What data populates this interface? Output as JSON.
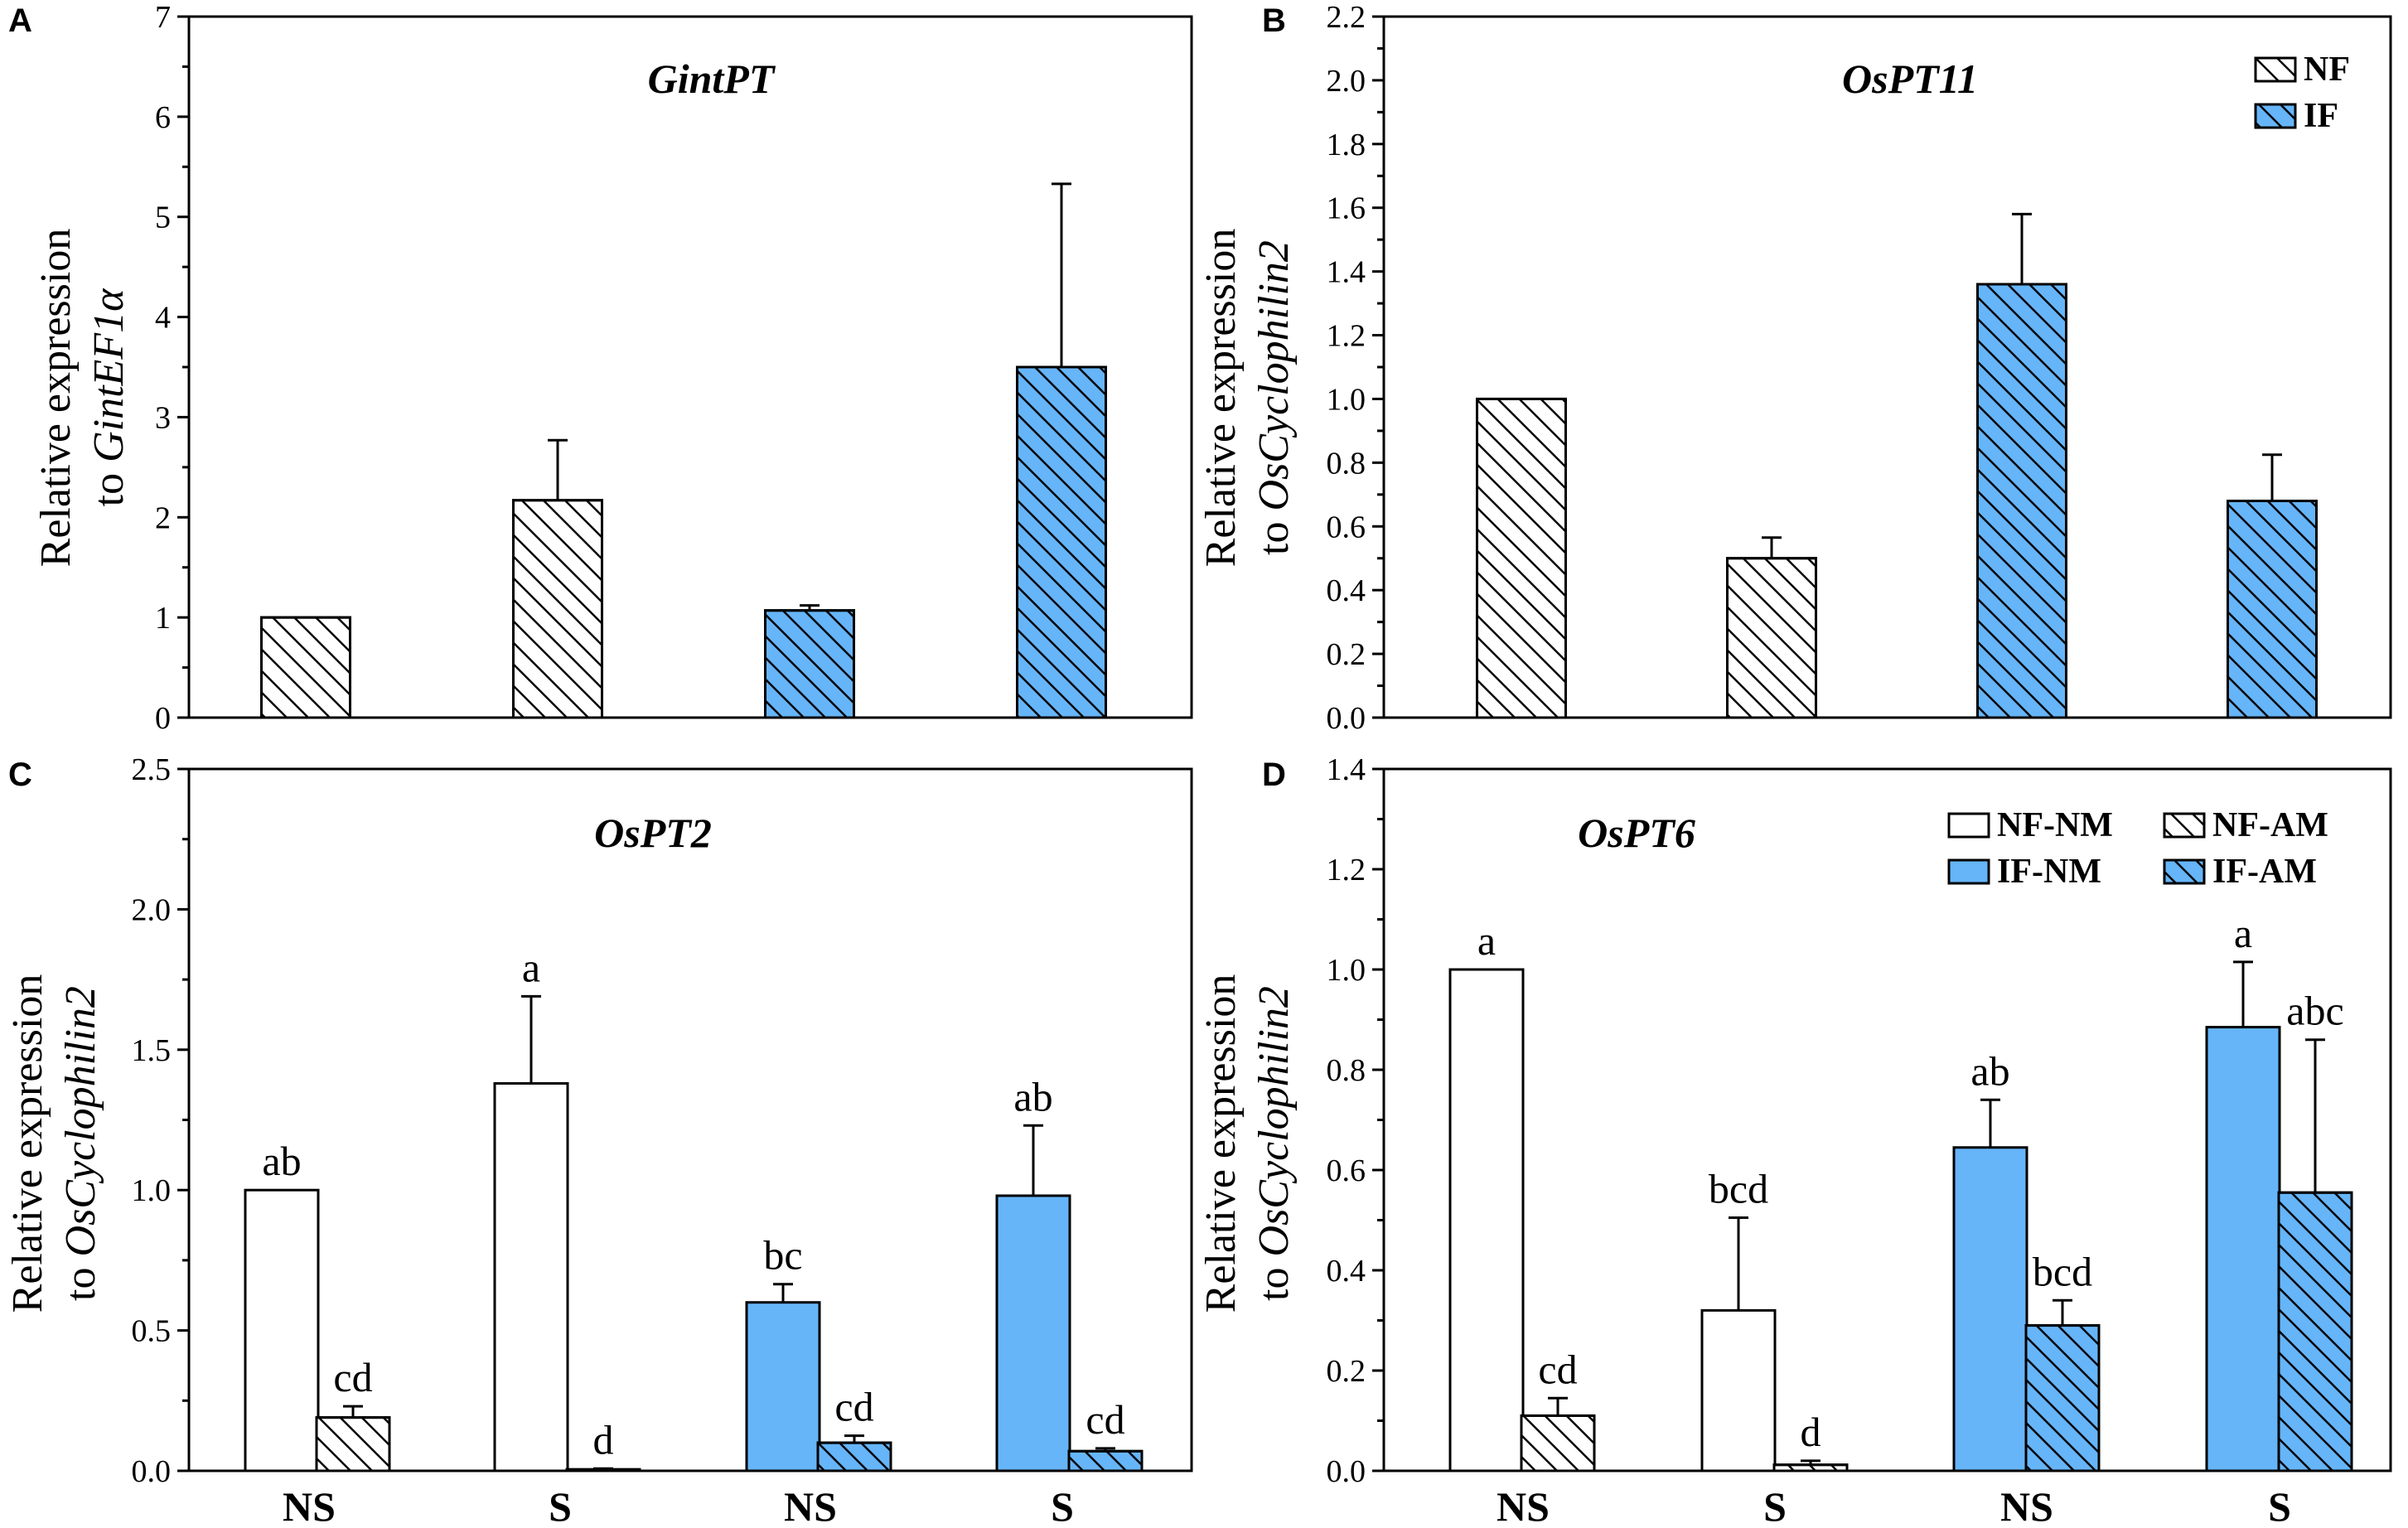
{
  "colors": {
    "blue": "#66b5f9",
    "white": "#ffffff",
    "black": "#000000"
  },
  "legends": {
    "B": [
      {
        "label": "NF",
        "fill": "white",
        "hatch": true
      },
      {
        "label": "IF",
        "fill": "blue",
        "hatch": true
      }
    ],
    "D": [
      {
        "label": "NF-NM",
        "fill": "white",
        "hatch": false
      },
      {
        "label": "NF-AM",
        "fill": "white",
        "hatch": true
      },
      {
        "label": "IF-NM",
        "fill": "blue",
        "hatch": false
      },
      {
        "label": "IF-AM",
        "fill": "blue",
        "hatch": true
      }
    ]
  },
  "chart_data": [
    {
      "panel": "A",
      "type": "bar",
      "title": "GintPT",
      "ylabel_plain": "Relative expression",
      "ylabel_prefix": "to ",
      "ylabel_italic": "GintEF1α",
      "ylim": [
        0,
        7
      ],
      "yticks": [
        {
          "v": 0,
          "label": "0"
        },
        {
          "v": 1,
          "label": "1"
        },
        {
          "v": 2,
          "label": "2"
        },
        {
          "v": 3,
          "label": "3"
        },
        {
          "v": 4,
          "label": "4"
        },
        {
          "v": 5,
          "label": "5"
        },
        {
          "v": 6,
          "label": "6"
        },
        {
          "v": 7,
          "label": "7"
        }
      ],
      "categories": [],
      "bars": [
        {
          "value": 1.0,
          "error": 0,
          "fill": "white",
          "hatch": true,
          "sig": ""
        },
        {
          "value": 2.17,
          "error": 0.6,
          "fill": "white",
          "hatch": true,
          "sig": ""
        },
        {
          "value": 1.07,
          "error": 0.05,
          "fill": "blue",
          "hatch": true,
          "sig": ""
        },
        {
          "value": 3.5,
          "error": 1.83,
          "fill": "blue",
          "hatch": true,
          "sig": ""
        }
      ]
    },
    {
      "panel": "B",
      "type": "bar",
      "title": "OsPT11",
      "ylabel_plain": "Relative expression",
      "ylabel_prefix": "to ",
      "ylabel_italic": "OsCyclophilin2",
      "ylim": [
        0,
        2.2
      ],
      "yticks": [
        {
          "v": 0,
          "label": "0.0"
        },
        {
          "v": 0.2,
          "label": "0.2"
        },
        {
          "v": 0.4,
          "label": "0.4"
        },
        {
          "v": 0.6,
          "label": "0.6"
        },
        {
          "v": 0.8,
          "label": "0.8"
        },
        {
          "v": 1.0,
          "label": "1.0"
        },
        {
          "v": 1.2,
          "label": "1.2"
        },
        {
          "v": 1.4,
          "label": "1.4"
        },
        {
          "v": 1.6,
          "label": "1.6"
        },
        {
          "v": 1.8,
          "label": "1.8"
        },
        {
          "v": 2.0,
          "label": "2.0"
        },
        {
          "v": 2.2,
          "label": "2.2"
        }
      ],
      "categories": [],
      "bars": [
        {
          "value": 1.0,
          "error": 0,
          "fill": "white",
          "hatch": true,
          "sig": ""
        },
        {
          "value": 0.5,
          "error": 0.065,
          "fill": "white",
          "hatch": true,
          "sig": ""
        },
        {
          "value": 1.36,
          "error": 0.22,
          "fill": "blue",
          "hatch": true,
          "sig": ""
        },
        {
          "value": 0.68,
          "error": 0.145,
          "fill": "blue",
          "hatch": true,
          "sig": ""
        }
      ]
    },
    {
      "panel": "C",
      "type": "bar",
      "title": "OsPT2",
      "ylabel_plain": "Relative expression",
      "ylabel_prefix": "to ",
      "ylabel_italic": "OsCyclophilin2",
      "ylim": [
        0,
        2.5
      ],
      "yticks": [
        {
          "v": 0,
          "label": "0.0"
        },
        {
          "v": 0.5,
          "label": "0.5"
        },
        {
          "v": 1.0,
          "label": "1.0"
        },
        {
          "v": 1.5,
          "label": "1.5"
        },
        {
          "v": 2.0,
          "label": "2.0"
        },
        {
          "v": 2.5,
          "label": "2.5"
        }
      ],
      "categories": [
        "NS",
        "S",
        "NS",
        "S"
      ],
      "bars": [
        {
          "value": 1.0,
          "error": 0,
          "fill": "white",
          "hatch": false,
          "sig": "ab"
        },
        {
          "value": 0.19,
          "error": 0.04,
          "fill": "white",
          "hatch": true,
          "sig": "cd"
        },
        {
          "value": 1.38,
          "error": 0.31,
          "fill": "white",
          "hatch": false,
          "sig": "a"
        },
        {
          "value": 0.005,
          "error": 0.003,
          "fill": "white",
          "hatch": true,
          "sig": "d"
        },
        {
          "value": 0.6,
          "error": 0.065,
          "fill": "blue",
          "hatch": false,
          "sig": "bc"
        },
        {
          "value": 0.1,
          "error": 0.025,
          "fill": "blue",
          "hatch": true,
          "sig": "cd"
        },
        {
          "value": 0.98,
          "error": 0.25,
          "fill": "blue",
          "hatch": false,
          "sig": "ab"
        },
        {
          "value": 0.07,
          "error": 0.01,
          "fill": "blue",
          "hatch": true,
          "sig": "cd"
        }
      ]
    },
    {
      "panel": "D",
      "type": "bar",
      "title": "OsPT6",
      "ylabel_plain": "Relative expression",
      "ylabel_prefix": "to ",
      "ylabel_italic": "OsCyclophilin2",
      "ylim": [
        0,
        1.4
      ],
      "yticks": [
        {
          "v": 0,
          "label": "0.0"
        },
        {
          "v": 0.2,
          "label": "0.2"
        },
        {
          "v": 0.4,
          "label": "0.4"
        },
        {
          "v": 0.6,
          "label": "0.6"
        },
        {
          "v": 0.8,
          "label": "0.8"
        },
        {
          "v": 1.0,
          "label": "1.0"
        },
        {
          "v": 1.2,
          "label": "1.2"
        },
        {
          "v": 1.4,
          "label": "1.4"
        }
      ],
      "categories": [
        "NS",
        "S",
        "NS",
        "S"
      ],
      "bars": [
        {
          "value": 1.0,
          "error": 0,
          "fill": "white",
          "hatch": false,
          "sig": "a"
        },
        {
          "value": 0.11,
          "error": 0.035,
          "fill": "white",
          "hatch": true,
          "sig": "cd"
        },
        {
          "value": 0.32,
          "error": 0.185,
          "fill": "white",
          "hatch": false,
          "sig": "bcd"
        },
        {
          "value": 0.012,
          "error": 0.008,
          "fill": "white",
          "hatch": true,
          "sig": "d"
        },
        {
          "value": 0.645,
          "error": 0.095,
          "fill": "blue",
          "hatch": false,
          "sig": "ab"
        },
        {
          "value": 0.29,
          "error": 0.05,
          "fill": "blue",
          "hatch": true,
          "sig": "bcd"
        },
        {
          "value": 0.885,
          "error": 0.13,
          "fill": "blue",
          "hatch": false,
          "sig": "a"
        },
        {
          "value": 0.555,
          "error": 0.305,
          "fill": "blue",
          "hatch": true,
          "sig": "abc"
        }
      ]
    }
  ]
}
